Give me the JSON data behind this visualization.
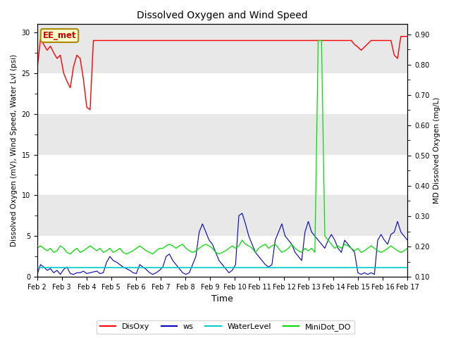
{
  "title": "Dissolved Oxygen and Wind Speed",
  "xlabel": "Time",
  "ylabel_left": "Dissolved Oxygen (mV), Wind Speed, Water Lvl (psi)",
  "ylabel_right": "MD Dissolved Oxygen (mg/L)",
  "annotation": "EE_met",
  "ylim_left": [
    0,
    31.0
  ],
  "ylim_right": [
    0.1,
    0.9333
  ],
  "yticks_left": [
    0,
    5,
    10,
    15,
    20,
    25,
    30
  ],
  "yticks_right": [
    0.1,
    0.2,
    0.3,
    0.4,
    0.5,
    0.6,
    0.7,
    0.8,
    0.9
  ],
  "xtick_labels": [
    "Feb 2",
    "Feb 3",
    "Feb 4",
    "Feb 5",
    "Feb 6",
    "Feb 7",
    "Feb 8",
    "Feb 9",
    "Feb 10",
    "Feb 11",
    "Feb 12",
    "Feb 13",
    "Feb 14",
    "Feb 15",
    "Feb 16",
    "Feb 17"
  ],
  "legend_labels": [
    "DisOxy",
    "ws",
    "WaterLevel",
    "MiniDot_DO"
  ],
  "legend_colors": [
    "#ff0000",
    "#0000bb",
    "#00cccc",
    "#00dd00"
  ],
  "bg_color": "#e8e8e8",
  "bg_color_dark": "#d0d0d0",
  "grid_color": "#ffffff",
  "DisOxy": [
    25.5,
    29.2,
    28.5,
    27.8,
    28.3,
    27.5,
    26.8,
    27.2,
    25.0,
    24.0,
    23.2,
    25.8,
    27.2,
    26.8,
    24.2,
    20.8,
    20.5,
    29.0,
    29.0,
    29.0,
    29.0,
    29.0,
    29.0,
    29.0,
    29.0,
    29.0,
    29.0,
    29.0,
    29.0,
    29.0,
    29.0,
    29.0,
    29.0,
    29.0,
    29.0,
    29.0,
    29.0,
    29.0,
    29.0,
    29.0,
    29.0,
    29.0,
    29.0,
    29.0,
    29.0,
    29.0,
    29.0,
    29.0,
    29.0,
    29.0,
    29.0,
    29.0,
    29.0,
    29.0,
    29.0,
    29.0,
    29.0,
    29.0,
    29.0,
    29.0,
    29.0,
    29.0,
    29.0,
    29.0,
    29.0,
    29.0,
    29.0,
    29.0,
    29.0,
    29.0,
    29.0,
    29.0,
    29.0,
    29.0,
    29.0,
    29.0,
    29.0,
    29.0,
    29.0,
    29.0,
    29.0,
    29.0,
    29.0,
    29.0,
    29.0,
    29.0,
    29.0,
    29.0,
    29.0,
    29.0,
    29.0,
    29.0,
    29.0,
    29.0,
    29.0,
    29.0,
    28.5,
    28.2,
    27.8,
    28.2,
    28.6,
    29.0,
    29.0,
    29.0,
    29.0,
    29.0,
    29.0,
    29.0,
    27.2,
    26.8,
    29.5,
    29.5,
    29.5
  ],
  "ws": [
    0.3,
    1.5,
    1.2,
    0.8,
    1.0,
    0.5,
    0.8,
    0.3,
    0.9,
    1.2,
    0.4,
    0.3,
    0.5,
    0.5,
    0.7,
    0.4,
    0.5,
    0.6,
    0.7,
    0.4,
    0.5,
    1.8,
    2.5,
    2.0,
    1.8,
    1.5,
    1.2,
    1.0,
    0.8,
    0.5,
    0.4,
    1.5,
    1.2,
    0.9,
    0.5,
    0.3,
    0.5,
    0.8,
    1.2,
    2.5,
    2.8,
    2.0,
    1.5,
    1.0,
    0.5,
    0.3,
    0.5,
    1.5,
    2.5,
    5.5,
    6.5,
    5.5,
    4.5,
    4.0,
    3.0,
    2.0,
    1.5,
    1.0,
    0.5,
    0.8,
    1.5,
    7.5,
    7.8,
    6.5,
    5.0,
    4.0,
    3.0,
    2.5,
    2.0,
    1.5,
    1.2,
    1.5,
    4.5,
    5.5,
    6.5,
    5.0,
    4.5,
    4.0,
    3.0,
    2.5,
    2.0,
    5.5,
    6.8,
    5.5,
    5.0,
    4.5,
    4.0,
    3.5,
    4.5,
    5.2,
    4.5,
    3.5,
    3.0,
    4.5,
    4.0,
    3.5,
    3.0,
    0.5,
    0.3,
    0.5,
    0.3,
    0.5,
    0.3,
    4.5,
    5.2,
    4.5,
    4.0,
    5.2,
    5.5,
    6.8,
    5.5,
    5.0,
    4.5
  ],
  "WaterLevel": [
    1.1,
    1.1,
    1.1,
    1.1,
    1.1,
    1.1,
    1.1,
    1.1,
    1.1,
    1.1,
    1.1,
    1.1,
    1.1,
    1.1,
    1.1,
    1.1,
    1.1,
    1.1,
    1.1,
    1.1,
    1.1,
    1.1,
    1.1,
    1.1,
    1.1,
    1.1,
    1.1,
    1.1,
    1.1,
    1.1,
    1.1,
    1.1,
    1.1,
    1.1,
    1.1,
    1.1,
    1.1,
    1.1,
    1.1,
    1.1,
    1.1,
    1.1,
    1.1,
    1.1,
    1.1,
    1.1,
    1.1,
    1.1,
    1.1,
    1.1,
    1.1,
    1.1,
    1.1,
    1.1,
    1.1,
    1.1,
    1.1,
    1.1,
    1.1,
    1.1,
    1.1,
    1.1,
    1.1,
    1.1,
    1.1,
    1.1,
    1.1,
    1.1,
    1.1,
    1.1,
    1.1,
    1.1,
    1.1,
    1.1,
    1.1,
    1.1,
    1.1,
    1.1,
    1.1,
    1.1,
    1.1,
    1.1,
    1.1,
    1.1,
    1.1,
    1.1,
    1.1,
    1.1,
    1.1,
    1.1,
    1.1,
    1.1,
    1.1,
    1.1,
    1.1,
    1.1,
    1.1,
    1.1,
    1.1,
    1.1,
    1.1,
    1.1,
    1.1,
    1.1,
    1.1,
    1.1,
    1.1,
    1.1,
    1.1,
    1.1,
    1.1,
    1.1,
    1.1
  ],
  "MiniDot_DO": [
    3.5,
    3.8,
    3.5,
    3.2,
    3.5,
    3.0,
    3.2,
    3.8,
    3.5,
    3.0,
    2.8,
    3.2,
    3.5,
    3.0,
    3.2,
    3.5,
    3.8,
    3.5,
    3.2,
    3.5,
    3.0,
    3.2,
    3.5,
    3.0,
    3.2,
    3.5,
    3.0,
    2.8,
    3.0,
    3.2,
    3.5,
    3.8,
    3.5,
    3.2,
    3.0,
    2.8,
    3.2,
    3.5,
    3.5,
    3.8,
    4.0,
    3.8,
    3.5,
    3.8,
    4.0,
    3.5,
    3.2,
    3.0,
    3.2,
    3.5,
    3.8,
    4.0,
    3.8,
    3.5,
    3.0,
    2.8,
    3.0,
    3.2,
    3.5,
    3.8,
    3.5,
    3.8,
    4.5,
    4.0,
    3.8,
    3.5,
    3.0,
    3.5,
    3.8,
    4.0,
    3.5,
    3.8,
    4.0,
    3.5,
    3.0,
    3.2,
    3.5,
    4.0,
    3.5,
    3.2,
    3.0,
    3.5,
    3.2,
    3.5,
    3.0,
    29.0,
    29.0,
    5.0,
    4.5,
    4.0,
    3.5,
    3.8,
    3.5,
    4.0,
    3.8,
    3.5,
    3.2,
    3.5,
    3.0,
    3.2,
    3.5,
    3.8,
    3.5,
    3.2,
    3.0,
    3.2,
    3.5,
    3.8,
    3.5,
    3.2,
    3.0,
    3.2,
    3.5
  ],
  "n_points": 113
}
